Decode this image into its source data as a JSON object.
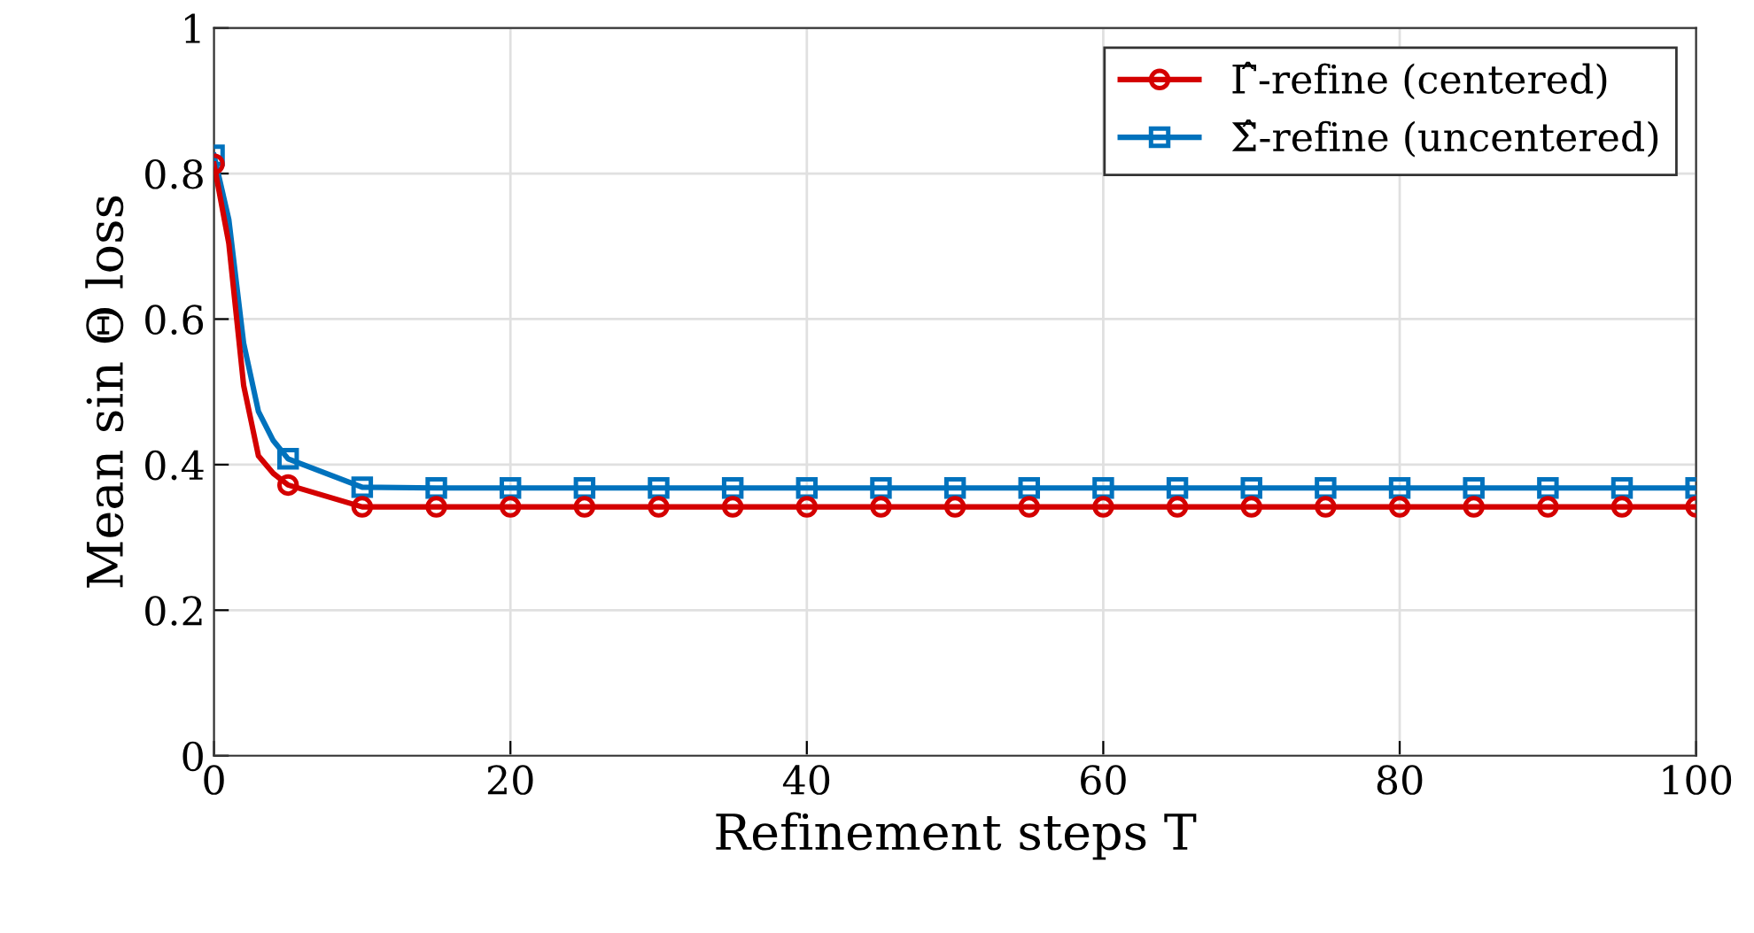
{
  "chart_data": {
    "type": "line",
    "xlabel": "Refinement steps T",
    "ylabel": "Mean sin Θ loss",
    "xlim": [
      0,
      100
    ],
    "ylim": [
      0,
      1
    ],
    "xticks": [
      0,
      20,
      40,
      60,
      80,
      100
    ],
    "yticks": [
      0,
      0.2,
      0.4,
      0.6,
      0.8,
      1
    ],
    "grid": true,
    "legend": "top right",
    "line_style": "solid",
    "series": [
      {
        "name": "Γ̂-refine (centered)",
        "color": "#d40000",
        "marker": "circle",
        "x": [
          0,
          1,
          2,
          3,
          4,
          5,
          10,
          15,
          20,
          25,
          30,
          35,
          40,
          45,
          50,
          55,
          60,
          65,
          70,
          75,
          80,
          85,
          90,
          95,
          100
        ],
        "values": [
          0.813,
          0.704,
          0.509,
          0.412,
          0.388,
          0.372,
          0.342,
          0.342,
          0.342,
          0.342,
          0.342,
          0.342,
          0.342,
          0.342,
          0.342,
          0.342,
          0.342,
          0.342,
          0.342,
          0.342,
          0.342,
          0.342,
          0.342,
          0.342,
          0.342
        ]
      },
      {
        "name": "Σ̂-refine (uncentered)",
        "color": "#0072bd",
        "marker": "square",
        "x": [
          0,
          1,
          2,
          3,
          4,
          5,
          10,
          15,
          20,
          25,
          30,
          35,
          40,
          45,
          50,
          55,
          60,
          65,
          70,
          75,
          80,
          85,
          90,
          95,
          100
        ],
        "values": [
          0.825,
          0.737,
          0.567,
          0.473,
          0.433,
          0.408,
          0.369,
          0.368,
          0.368,
          0.368,
          0.368,
          0.368,
          0.368,
          0.368,
          0.368,
          0.368,
          0.368,
          0.368,
          0.368,
          0.368,
          0.368,
          0.368,
          0.368,
          0.368,
          0.368
        ]
      }
    ]
  }
}
